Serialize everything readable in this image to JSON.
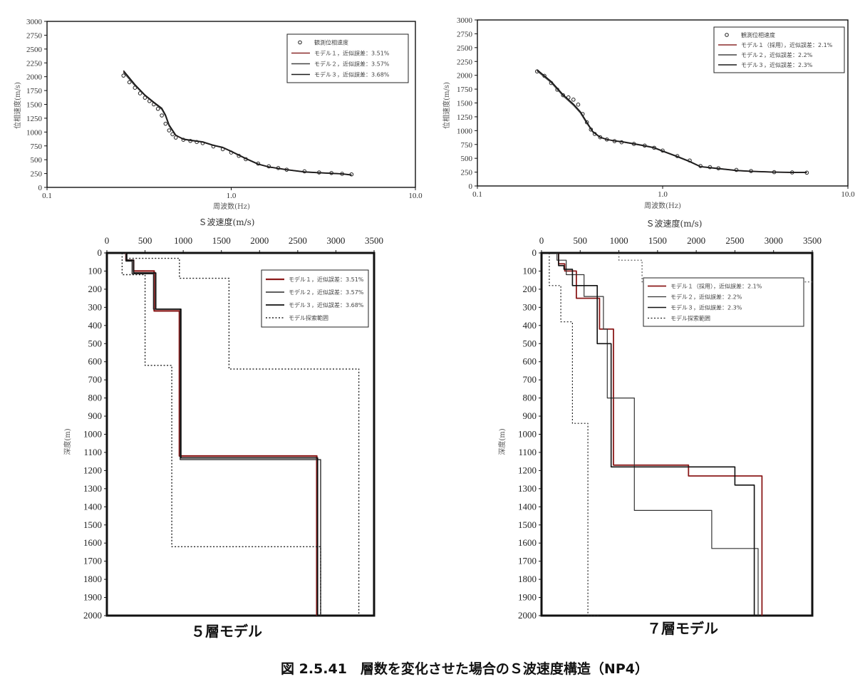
{
  "figure_caption": "図 2.5.41　層数を変化させた場合のＳ波速度構造（NP4）",
  "chart_data": [
    {
      "type": "line",
      "panel": "top-left",
      "xlabel": "周波数(Hz)",
      "ylabel": "位相速度(m/s)",
      "xscale": "log",
      "xlim": [
        0.1,
        10.0
      ],
      "ylim": [
        0,
        3000
      ],
      "xticks": [
        0.1,
        1.0,
        10.0
      ],
      "xtick_labels": [
        "0.1",
        "1.0",
        "10.0"
      ],
      "yticks": [
        0,
        250,
        500,
        750,
        1000,
        1250,
        1500,
        1750,
        2000,
        2250,
        2500,
        2750,
        3000
      ],
      "grid": false,
      "legend_position": "top-right",
      "series": [
        {
          "name": "観測位相速度",
          "style": "markers",
          "color": "#222222",
          "x": [
            0.26,
            0.28,
            0.3,
            0.32,
            0.34,
            0.36,
            0.38,
            0.4,
            0.42,
            0.44,
            0.46,
            0.48,
            0.5,
            0.55,
            0.6,
            0.65,
            0.7,
            0.8,
            0.9,
            1.0,
            1.1,
            1.2,
            1.4,
            1.6,
            1.8,
            2.0,
            2.5,
            3.0,
            3.5,
            4.0,
            4.5
          ],
          "y": [
            2020,
            1900,
            1800,
            1700,
            1620,
            1560,
            1500,
            1420,
            1300,
            1150,
            1030,
            960,
            900,
            860,
            840,
            820,
            800,
            740,
            690,
            630,
            570,
            510,
            430,
            380,
            350,
            320,
            290,
            270,
            260,
            245,
            235
          ]
        },
        {
          "name": "モデル１，近似誤差：3.51%",
          "style": "line",
          "color": "#8b2a2a",
          "x": [
            0.26,
            0.3,
            0.34,
            0.38,
            0.42,
            0.44,
            0.46,
            0.5,
            0.55,
            0.6,
            0.7,
            0.8,
            0.9,
            1.0,
            1.2,
            1.4,
            1.6,
            2.0,
            2.5,
            3.0,
            3.5,
            4.0,
            4.5
          ],
          "y": [
            2090,
            1850,
            1660,
            1530,
            1420,
            1300,
            1120,
            940,
            870,
            850,
            820,
            760,
            720,
            650,
            520,
            420,
            370,
            320,
            280,
            265,
            255,
            245,
            225
          ]
        },
        {
          "name": "モデル２，近似誤差：3.57%",
          "style": "line",
          "color": "#444444",
          "x": [
            0.26,
            0.3,
            0.34,
            0.38,
            0.42,
            0.44,
            0.46,
            0.5,
            0.55,
            0.6,
            0.7,
            0.8,
            0.9,
            1.0,
            1.2,
            1.4,
            1.6,
            2.0,
            2.5,
            3.0,
            3.5,
            4.0,
            4.5
          ],
          "y": [
            2080,
            1840,
            1660,
            1530,
            1410,
            1290,
            1110,
            940,
            875,
            855,
            825,
            765,
            725,
            655,
            525,
            425,
            372,
            322,
            282,
            266,
            256,
            246,
            228
          ]
        },
        {
          "name": "モデル３，近似誤差：3.68%",
          "style": "line",
          "color": "#1a1a1a",
          "x": [
            0.26,
            0.3,
            0.34,
            0.38,
            0.42,
            0.44,
            0.46,
            0.5,
            0.55,
            0.6,
            0.7,
            0.8,
            0.9,
            1.0,
            1.2,
            1.4,
            1.6,
            2.0,
            2.5,
            3.0,
            3.5,
            4.0,
            4.5
          ],
          "y": [
            2110,
            1860,
            1670,
            1540,
            1430,
            1310,
            1130,
            945,
            868,
            848,
            818,
            758,
            718,
            648,
            518,
            418,
            368,
            318,
            278,
            263,
            253,
            243,
            222
          ]
        }
      ]
    },
    {
      "type": "line",
      "panel": "top-right",
      "xlabel": "周波数(Hz)",
      "ylabel": "位相速度(m/s)",
      "xscale": "log",
      "xlim": [
        0.1,
        10.0
      ],
      "ylim": [
        0,
        3000
      ],
      "xticks": [
        0.1,
        1.0,
        10.0
      ],
      "xtick_labels": [
        "0.1",
        "1.0",
        "10.0"
      ],
      "yticks": [
        0,
        250,
        500,
        750,
        1000,
        1250,
        1500,
        1750,
        2000,
        2250,
        2500,
        2750,
        3000
      ],
      "grid": false,
      "legend_position": "top-right",
      "series": [
        {
          "name": "観測位相速度",
          "style": "markers",
          "color": "#222222",
          "x": [
            0.21,
            0.23,
            0.25,
            0.27,
            0.29,
            0.31,
            0.33,
            0.35,
            0.37,
            0.39,
            0.41,
            0.43,
            0.46,
            0.5,
            0.55,
            0.6,
            0.7,
            0.8,
            0.9,
            1.0,
            1.2,
            1.4,
            1.6,
            1.8,
            2.0,
            2.5,
            3.0,
            4.0,
            5.0,
            6.0
          ],
          "y": [
            2070,
            1990,
            1860,
            1740,
            1640,
            1600,
            1560,
            1470,
            1300,
            1150,
            1020,
            940,
            880,
            840,
            810,
            790,
            760,
            730,
            690,
            640,
            540,
            460,
            360,
            340,
            320,
            290,
            270,
            250,
            245,
            240
          ]
        },
        {
          "name": "モデル１（採用），近似誤差：2.1%",
          "style": "line",
          "color": "#8b2a2a",
          "x": [
            0.21,
            0.25,
            0.29,
            0.33,
            0.36,
            0.39,
            0.42,
            0.46,
            0.5,
            0.55,
            0.6,
            0.7,
            0.8,
            0.9,
            1.0,
            1.2,
            1.4,
            1.6,
            2.0,
            2.5,
            3.0,
            4.0,
            5.0,
            6.0
          ],
          "y": [
            2090,
            1880,
            1640,
            1470,
            1330,
            1140,
            980,
            880,
            840,
            815,
            800,
            760,
            725,
            690,
            630,
            530,
            440,
            350,
            315,
            280,
            265,
            250,
            245,
            245
          ]
        },
        {
          "name": "モデル２，近似誤差：2.2%",
          "style": "line",
          "color": "#444444",
          "x": [
            0.21,
            0.25,
            0.29,
            0.33,
            0.36,
            0.39,
            0.42,
            0.46,
            0.5,
            0.55,
            0.6,
            0.7,
            0.8,
            0.9,
            1.0,
            1.2,
            1.4,
            1.6,
            2.0,
            2.5,
            3.0,
            4.0,
            5.0,
            6.0
          ],
          "y": [
            2080,
            1870,
            1630,
            1460,
            1320,
            1130,
            975,
            878,
            838,
            818,
            805,
            765,
            730,
            695,
            635,
            535,
            445,
            352,
            318,
            282,
            267,
            252,
            247,
            247
          ]
        },
        {
          "name": "モデル３，近似誤差：2.3%",
          "style": "line",
          "color": "#1a1a1a",
          "x": [
            0.21,
            0.25,
            0.29,
            0.33,
            0.36,
            0.39,
            0.42,
            0.46,
            0.5,
            0.55,
            0.6,
            0.7,
            0.8,
            0.9,
            1.0,
            1.2,
            1.4,
            1.6,
            2.0,
            2.5,
            3.0,
            4.0,
            5.0,
            6.0
          ],
          "y": [
            2100,
            1890,
            1650,
            1480,
            1340,
            1150,
            985,
            882,
            842,
            812,
            798,
            758,
            722,
            688,
            628,
            528,
            438,
            348,
            312,
            278,
            263,
            248,
            243,
            243
          ]
        }
      ]
    },
    {
      "type": "line",
      "panel": "bottom-left",
      "subcaption": "５層モデル",
      "xlabel": "Ｓ波速度(m/s)",
      "ylabel": "深度(m)",
      "xlim": [
        0,
        3500
      ],
      "ylim": [
        0,
        2000
      ],
      "y_inverted": true,
      "x_axis_position": "top",
      "xticks": [
        0,
        500,
        1000,
        1500,
        2000,
        2500,
        3000,
        3500
      ],
      "yticks": [
        0,
        100,
        200,
        300,
        400,
        500,
        600,
        700,
        800,
        900,
        1000,
        1100,
        1200,
        1300,
        1400,
        1500,
        1600,
        1700,
        1800,
        1900,
        2000
      ],
      "grid": false,
      "legend_position": "top-right",
      "series": [
        {
          "name": "モデル１，近似誤差：3.51%",
          "style": "solid",
          "color": "#8b1a1a",
          "width": 2.2,
          "x": [
            250,
            250,
            350,
            350,
            620,
            620,
            950,
            950,
            2750,
            2750
          ],
          "y": [
            0,
            40,
            40,
            100,
            100,
            320,
            320,
            1120,
            1120,
            2000
          ]
        },
        {
          "name": "モデル２，近似誤差：3.57%",
          "style": "solid",
          "color": "#2a2a2a",
          "width": 1.4,
          "x": [
            250,
            250,
            330,
            330,
            610,
            610,
            960,
            960,
            2800,
            2800
          ],
          "y": [
            0,
            45,
            45,
            115,
            115,
            310,
            310,
            1140,
            1140,
            2000
          ]
        },
        {
          "name": "モデル３，近似誤差：3.68%",
          "style": "solid",
          "color": "#111111",
          "width": 1.8,
          "x": [
            260,
            260,
            350,
            350,
            640,
            640,
            970,
            970,
            2760,
            2760
          ],
          "y": [
            0,
            40,
            40,
            110,
            110,
            310,
            310,
            1130,
            1130,
            2000
          ]
        },
        {
          "name": "モデル探索範囲",
          "style": "dotted",
          "color": "#222222",
          "width": 1.4,
          "x": [
            200,
            200,
            500,
            500,
            850,
            850,
            2800,
            2800
          ],
          "y": [
            0,
            120,
            120,
            620,
            620,
            1620,
            1620,
            2000
          ]
        },
        {
          "name": "",
          "style": "dotted",
          "color": "#222222",
          "width": 1.4,
          "x": [
            250,
            950,
            950,
            1600,
            1600,
            3300,
            3300
          ],
          "y": [
            30,
            30,
            140,
            140,
            640,
            640,
            2000
          ]
        }
      ]
    },
    {
      "type": "line",
      "panel": "bottom-right",
      "subcaption": "７層モデル",
      "xlabel": "Ｓ波速度(m/s)",
      "ylabel": "深度(m)",
      "xlim": [
        0,
        3500
      ],
      "ylim": [
        0,
        2000
      ],
      "y_inverted": true,
      "x_axis_position": "top",
      "xticks": [
        0,
        500,
        1000,
        1500,
        2000,
        2500,
        3000,
        3500
      ],
      "yticks": [
        0,
        100,
        200,
        300,
        400,
        500,
        600,
        700,
        800,
        900,
        1000,
        1100,
        1200,
        1300,
        1400,
        1500,
        1600,
        1700,
        1800,
        1900,
        2000
      ],
      "grid": false,
      "legend_position": "top-right",
      "series": [
        {
          "name": "モデル１（採用），近似誤差：2.1%",
          "style": "solid",
          "color": "#8b1a1a",
          "width": 1.8,
          "x": [
            220,
            220,
            300,
            300,
            450,
            450,
            750,
            750,
            930,
            930,
            1900,
            1900,
            2850,
            2850
          ],
          "y": [
            0,
            60,
            60,
            100,
            100,
            250,
            250,
            420,
            420,
            1170,
            1170,
            1230,
            1230,
            2000
          ]
        },
        {
          "name": "モデル２，近似誤差：2.2%",
          "style": "solid",
          "color": "#333333",
          "width": 1.2,
          "x": [
            200,
            200,
            320,
            320,
            550,
            550,
            800,
            800,
            850,
            850,
            1200,
            1200,
            2200,
            2200,
            2800,
            2800
          ],
          "y": [
            0,
            40,
            40,
            120,
            120,
            240,
            240,
            420,
            420,
            800,
            800,
            1420,
            1420,
            1630,
            1630,
            2000
          ]
        },
        {
          "name": "モデル３，近似誤差：2.3%",
          "style": "solid",
          "color": "#111111",
          "width": 1.6,
          "x": [
            220,
            220,
            290,
            290,
            400,
            400,
            720,
            720,
            900,
            900,
            2500,
            2500,
            2750,
            2750
          ],
          "y": [
            0,
            70,
            70,
            90,
            90,
            180,
            180,
            500,
            500,
            1180,
            1180,
            1280,
            1280,
            2000
          ]
        },
        {
          "name": "モデル探索範囲",
          "style": "dotted",
          "color": "#222222",
          "width": 1.2,
          "x": [
            100,
            100,
            250,
            250,
            400,
            400,
            600,
            600,
            750,
            750
          ],
          "y": [
            0,
            180,
            180,
            380,
            380,
            940,
            940,
            2000,
            2000,
            2000
          ]
        },
        {
          "name": "",
          "style": "dotted",
          "color": "#555555",
          "width": 1.2,
          "x": [
            1000,
            1000,
            1300,
            1300,
            3500
          ],
          "y": [
            0,
            40,
            40,
            160,
            160
          ]
        }
      ]
    }
  ]
}
